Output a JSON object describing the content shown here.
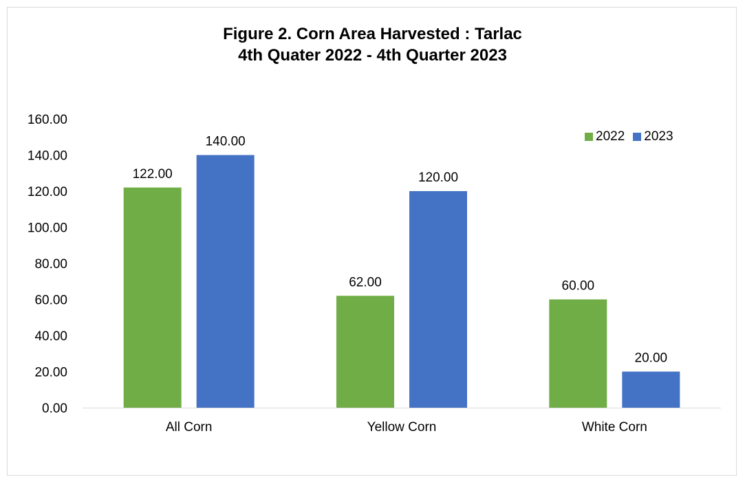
{
  "chart_data": {
    "type": "bar",
    "title": "Figure 2. Corn Area Harvested : Tarlac",
    "subtitle": "4th Quater 2022 - 4th Quarter 2023",
    "categories": [
      "All Corn",
      "Yellow Corn",
      "White Corn"
    ],
    "series": [
      {
        "name": "2022",
        "color": "#70ad47",
        "values": [
          122.0,
          62.0,
          60.0
        ]
      },
      {
        "name": "2023",
        "color": "#4472c4",
        "values": [
          140.0,
          120.0,
          20.0
        ]
      }
    ],
    "ylim": [
      0,
      160
    ],
    "yticks": [
      "0.00",
      "20.00",
      "40.00",
      "60.00",
      "80.00",
      "100.00",
      "120.00",
      "140.00",
      "160.00"
    ],
    "data_labels": [
      [
        "122.00",
        "62.00",
        "60.00"
      ],
      [
        "140.00",
        "120.00",
        "20.00"
      ]
    ],
    "legend_position": "top-right",
    "grid": false
  }
}
